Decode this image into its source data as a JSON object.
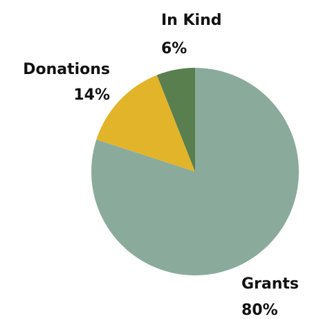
{
  "chart_data": {
    "type": "pie",
    "title": "",
    "start_angle_deg": 0,
    "direction": "clockwise",
    "slices": [
      {
        "label": "Grants",
        "value": 80,
        "value_label": "80%",
        "color": "#8aab9c"
      },
      {
        "label": "Donations",
        "value": 14,
        "value_label": "14%",
        "color": "#e2b42a"
      },
      {
        "label": "In Kind",
        "value": 6,
        "value_label": "6%",
        "color": "#5a7f4e"
      }
    ],
    "legend": "none"
  }
}
